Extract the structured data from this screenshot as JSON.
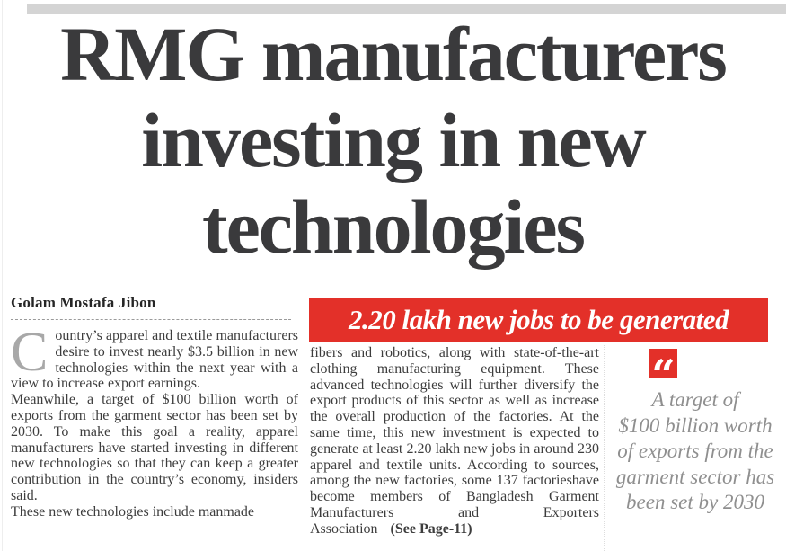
{
  "headline": {
    "lines": [
      "RMG manufacturers",
      "investing in new",
      "technologies"
    ]
  },
  "byline": "Golam Mostafa Jibon",
  "banner": {
    "text": "2.20 lakh new jobs to be generated",
    "bg_color": "#e33029",
    "text_color": "#ffffff"
  },
  "article": {
    "dropcap": "C",
    "paragraphs": [
      "ountry’s apparel and textile manufacturers desire to invest nearly $3.5 billion in new technologies within the next year with a view to increase export earnings.",
      "Meanwhile, a target of $100 billion worth of exports from the garment sector has been set by 2030. To make this goal a reality, apparel manufacturers have started investing in different new technologies so that they can keep a greater contribution in the country’s economy, insiders said.",
      "These new technologies include manmade"
    ],
    "column2_text": "fibers and robotics, along with state-of-the-art clothing manufacturing equipment. These advanced technologies will further diversify the export products of this sector as well as increase the overall production of the factories. At the same time, this new investment is expected to generate at least 2.20 lakh new jobs in around 230 apparel and textile units. According to sources, among the new factories, some 137 factorieshave become members of Bangladesh Garment Manufacturers and Exporters Association",
    "continuation": "(See Page-11)"
  },
  "pullquote": {
    "icon": "open-quote-icon",
    "icon_glyph": "“",
    "lines": [
      "A target of",
      "$100 billion worth",
      "of exports from the",
      "garment sector has",
      "been set by 2030"
    ],
    "text_color": "#8f8f8f"
  },
  "colors": {
    "accent_red": "#e33029",
    "headline_ink": "#3a3a3c",
    "body_ink": "#3d3d3d",
    "topbar_gray": "#d4d4d4",
    "quote_gray": "#8f8f8f"
  }
}
